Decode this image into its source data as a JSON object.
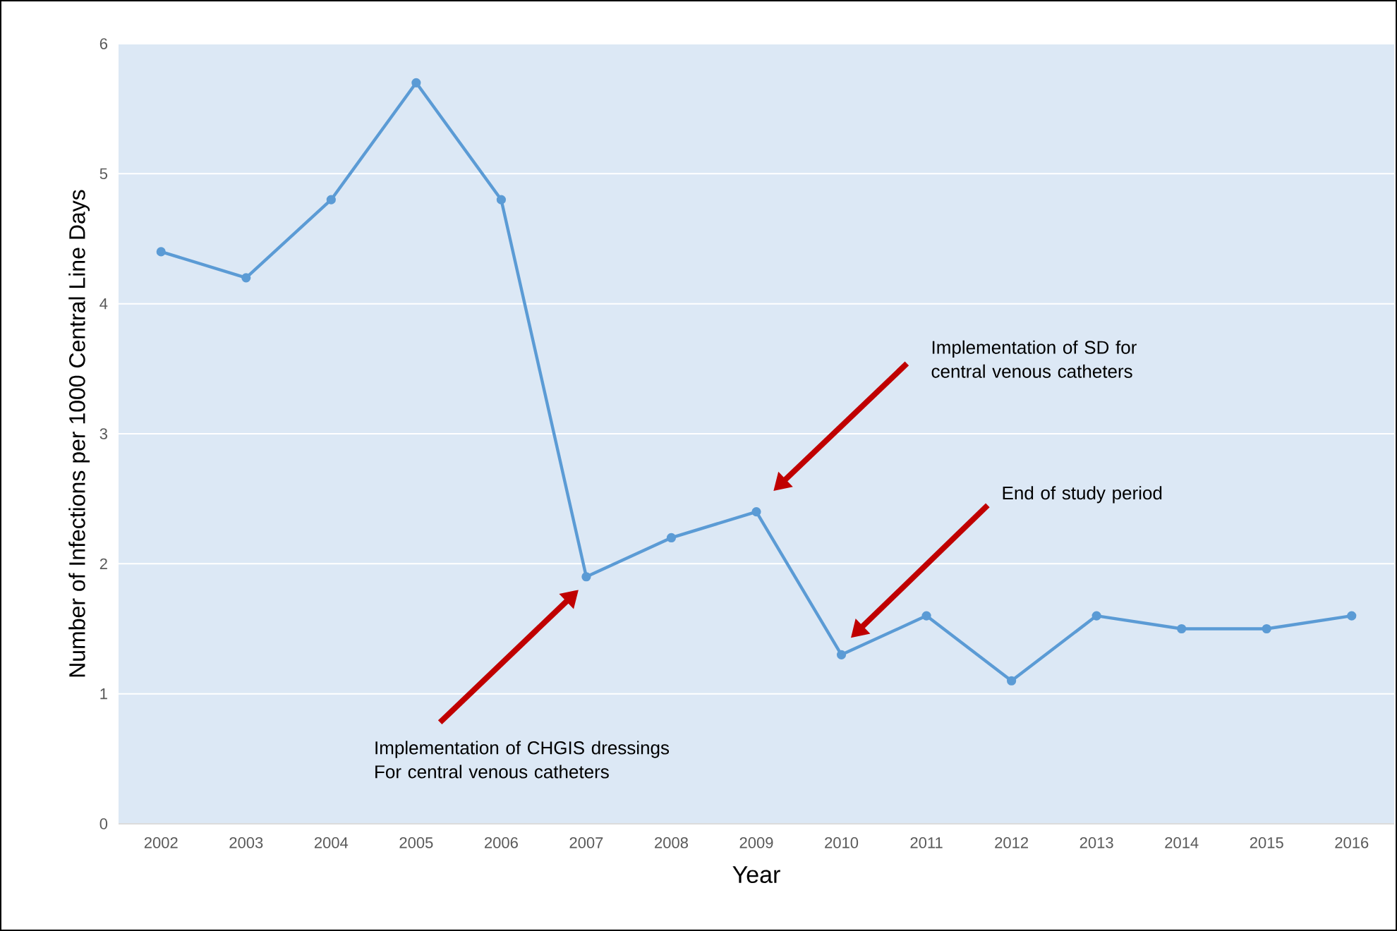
{
  "chart_data": {
    "type": "line",
    "xlabel": "Year",
    "ylabel": "Number of Infections per 1000 Central Line Days",
    "categories": [
      "2002",
      "2003",
      "2004",
      "2005",
      "2006",
      "2007",
      "2008",
      "2009",
      "2010",
      "2011",
      "2012",
      "2013",
      "2014",
      "2015",
      "2016"
    ],
    "series": [
      {
        "color": "#5b9bd5",
        "values": [
          4.4,
          4.2,
          4.8,
          5.7,
          4.8,
          1.9,
          2.2,
          2.4,
          1.3,
          1.6,
          1.1,
          1.6,
          1.5,
          1.5,
          1.6
        ]
      }
    ],
    "ylim": [
      0,
      6
    ],
    "yticks": [
      0,
      1,
      2,
      3,
      4,
      5,
      6
    ],
    "grid": "y",
    "marker": "circle",
    "line_style": "solid",
    "annotations": [
      "Implementation of CHGIS dressings For central venous catheters",
      "Implementation of SD for central venous catheters",
      "End of study period"
    ]
  }
}
